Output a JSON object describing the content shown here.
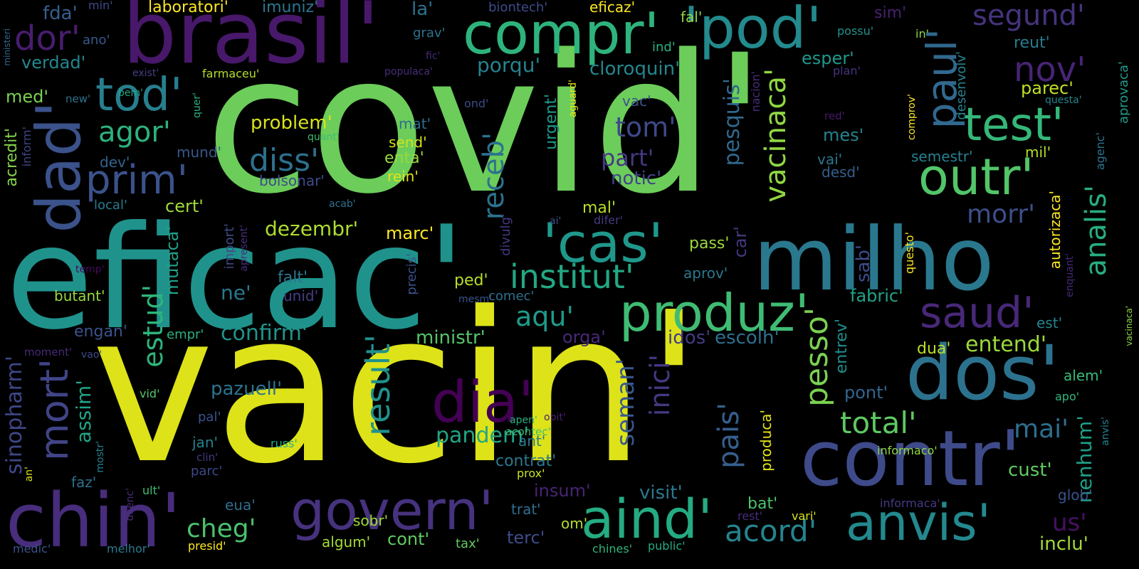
{
  "palette": {
    "background": "#000000"
  },
  "words": [
    {
      "text": "covid'",
      "color": "#6ccd5a"
    },
    {
      "text": "vacin'",
      "color": "#dde318"
    },
    {
      "text": "eficac'",
      "color": "#20928c"
    },
    {
      "text": "brasil'",
      "color": "#48186a"
    },
    {
      "text": "milho",
      "color": "#2a788e"
    },
    {
      "text": "contr'",
      "color": "#3e4a89"
    },
    {
      "text": "chin'",
      "color": "#472d7b"
    },
    {
      "text": "dos'",
      "color": "#2c728e"
    },
    {
      "text": "compr'",
      "color": "#2eb37c"
    },
    {
      "text": "'pod'",
      "color": "#238a8d"
    },
    {
      "text": "dad'",
      "color": "#3b528b"
    },
    {
      "text": "produz'",
      "color": "#3fbc73"
    },
    {
      "text": "govern'",
      "color": "#46327e"
    },
    {
      "text": "aind'",
      "color": "#25ab82"
    },
    {
      "text": "anvis'",
      "color": "#23898e"
    },
    {
      "text": "dia'",
      "color": "#440154"
    },
    {
      "text": "'cas'",
      "color": "#1f988b"
    },
    {
      "text": "outr'",
      "color": "#52c569"
    },
    {
      "text": "test'",
      "color": "#35b779"
    },
    {
      "text": "tod'",
      "color": "#277f8e"
    },
    {
      "text": "paul'",
      "color": "#31688e"
    },
    {
      "text": "saud'",
      "color": "#482878"
    },
    {
      "text": "institut'",
      "color": "#22a884"
    },
    {
      "text": "prim'",
      "color": "#3b528b"
    },
    {
      "text": "mort'",
      "color": "#414487"
    },
    {
      "text": "dor'",
      "color": "#481d6f"
    },
    {
      "text": "nov'",
      "color": "#482475"
    },
    {
      "text": "segund'",
      "color": "#46337e"
    },
    {
      "text": "agor'",
      "color": "#2db27d"
    },
    {
      "text": "diss'",
      "color": "#2d708e"
    },
    {
      "text": "result'",
      "color": "#21918c"
    },
    {
      "text": "estud'",
      "color": "#2fb47c"
    },
    {
      "text": "receb'",
      "color": "#2c728e"
    },
    {
      "text": "vacinaca'",
      "color": "#90d743"
    },
    {
      "text": "pesso'",
      "color": "#7ad151"
    },
    {
      "text": "total'",
      "color": "#5ec962"
    },
    {
      "text": "analis'",
      "color": "#27ad81"
    },
    {
      "text": "acord'",
      "color": "#25848e"
    },
    {
      "text": "pais'",
      "color": "#355f8d"
    },
    {
      "text": "inici'",
      "color": "#453882"
    },
    {
      "text": "seman'",
      "color": "#38588c"
    },
    {
      "text": "cheg'",
      "color": "#4ac16d"
    },
    {
      "text": "aqu'",
      "color": "#1e9b8a"
    },
    {
      "text": "tom'",
      "color": "#3e4989"
    },
    {
      "text": "morr'",
      "color": "#3d4e8a"
    },
    {
      "text": "pandem'",
      "color": "#21a585"
    },
    {
      "text": "mai'",
      "color": "#2e6e8e"
    },
    {
      "text": "entend'",
      "color": "#9bd93c"
    },
    {
      "text": "pesquis'",
      "color": "#30698e"
    },
    {
      "text": "confirm'",
      "color": "#1f958b"
    },
    {
      "text": "porqu'",
      "color": "#26828e"
    },
    {
      "text": "part'",
      "color": "#443983"
    },
    {
      "text": "cloroquin'",
      "color": "#24868e"
    },
    {
      "text": "dezembr'",
      "color": "#addc30"
    },
    {
      "text": "sinopharm'",
      "color": "#3f4788"
    },
    {
      "text": "assim'",
      "color": "#20a386"
    },
    {
      "text": "pazuell'",
      "color": "#2c738e"
    },
    {
      "text": "mutaca'",
      "color": "#1fa188"
    },
    {
      "text": "us'",
      "color": "#471063"
    },
    {
      "text": "nenhum'",
      "color": "#1fa088"
    },
    {
      "text": "inclu'",
      "color": "#a2da37"
    },
    {
      "text": "anvis'",
      "color": "#26818e"
    },
    {
      "text": "marc'",
      "color": "#fde725"
    },
    {
      "text": "problem'",
      "color": "#d8e219"
    },
    {
      "text": "ministr'",
      "color": "#54c568"
    },
    {
      "text": "pont'",
      "color": "#32658e"
    },
    {
      "text": "esper'",
      "color": "#1f988b"
    },
    {
      "text": "reut'",
      "color": "#287c8e"
    },
    {
      "text": "parec'",
      "color": "#c2df23"
    },
    {
      "text": "urgent'",
      "color": "#1f9a8a"
    },
    {
      "text": "vacinaca'",
      "color": "#90d743"
    },
    {
      "text": "sab'",
      "color": "#3e4c8a"
    },
    {
      "text": "mes'",
      "color": "#26828e"
    },
    {
      "text": "vai'",
      "color": "#2a778e"
    },
    {
      "text": "desd'",
      "color": "#355f8d"
    },
    {
      "text": "semestr'",
      "color": "#27808e"
    },
    {
      "text": "mil'",
      "color": "#b5de2b"
    },
    {
      "text": "notic'",
      "color": "#414487"
    },
    {
      "text": "mal'",
      "color": "#b8de29"
    },
    {
      "text": "pass'",
      "color": "#9bd93c"
    },
    {
      "text": "car'",
      "color": "#443983"
    },
    {
      "text": "aprov'",
      "color": "#2a778e"
    },
    {
      "text": "fabric'",
      "color": "#20a386"
    },
    {
      "text": "est'",
      "color": "#25848e"
    },
    {
      "text": "dua'",
      "color": "#bddf26"
    },
    {
      "text": "cust'",
      "color": "#5ec962"
    },
    {
      "text": "alem'",
      "color": "#3aba76"
    },
    {
      "text": "apo'",
      "color": "#31b57b"
    },
    {
      "text": "glob'",
      "color": "#3a538b"
    },
    {
      "text": "entrev'",
      "color": "#218e8d"
    },
    {
      "text": "escolh'",
      "color": "#2d708e"
    },
    {
      "text": "idos'",
      "color": "#443a83"
    },
    {
      "text": "orga'",
      "color": "#482878"
    },
    {
      "text": "visit'",
      "color": "#2a788e"
    },
    {
      "text": "bat'",
      "color": "#4ec36b"
    },
    {
      "text": "insum'",
      "color": "#482475"
    },
    {
      "text": "contrat'",
      "color": "#2a788e"
    },
    {
      "text": "prox'",
      "color": "#c8e020"
    },
    {
      "text": "trat'",
      "color": "#2e6f8e"
    },
    {
      "text": "om'",
      "color": "#b5de2b"
    },
    {
      "text": "terc'",
      "color": "#3e4c8a"
    },
    {
      "text": "cont'",
      "color": "#5ec962"
    },
    {
      "text": "tax'",
      "color": "#63cb5f"
    },
    {
      "text": "algum'",
      "color": "#a2da37"
    },
    {
      "text": "sobr'",
      "color": "#9fda3a"
    },
    {
      "text": "acontec'",
      "color": "#3fbc73"
    },
    {
      "text": "apen'",
      "color": "#2ab07f"
    },
    {
      "text": "ant'",
      "color": "#2a788e"
    },
    {
      "text": "obit'",
      "color": "#482173"
    },
    {
      "text": "vid'",
      "color": "#52c569"
    },
    {
      "text": "pal'",
      "color": "#3b528b"
    },
    {
      "text": "jan'",
      "color": "#26828e"
    },
    {
      "text": "clin'",
      "color": "#443a83"
    },
    {
      "text": "parc'",
      "color": "#3e4989"
    },
    {
      "text": "eua'",
      "color": "#2e6e8e"
    },
    {
      "text": "russ'",
      "color": "#29af7f"
    },
    {
      "text": "faz'",
      "color": "#2e6e8e"
    },
    {
      "text": "doenc'",
      "color": "#472c7a"
    },
    {
      "text": "ult'",
      "color": "#3fbc73"
    },
    {
      "text": "mostr'",
      "color": "#25848e"
    },
    {
      "text": "an'",
      "color": "#dde318"
    },
    {
      "text": "medic'",
      "color": "#3b528b"
    },
    {
      "text": "melhor'",
      "color": "#287c8e"
    },
    {
      "text": "presid'",
      "color": "#fde725"
    },
    {
      "text": "chines'",
      "color": "#31b57b"
    },
    {
      "text": "public'",
      "color": "#25ab82"
    },
    {
      "text": "vari'",
      "color": "#d8e219"
    },
    {
      "text": "rest'",
      "color": "#472d7b"
    },
    {
      "text": "informaca'",
      "color": "#443983"
    },
    {
      "text": "informaco'",
      "color": "#8ed645"
    },
    {
      "text": "produca'",
      "color": "#e5e419"
    },
    {
      "text": "questo'",
      "color": "#fde725"
    },
    {
      "text": "autorizaca'",
      "color": "#fde725"
    },
    {
      "text": "enquant'",
      "color": "#482878"
    },
    {
      "text": "agenc'",
      "color": "#2c728e"
    },
    {
      "text": "aprovaca'",
      "color": "#1f998a"
    },
    {
      "text": "questa'",
      "color": "#25848e"
    },
    {
      "text": "comprov'",
      "color": "#fde725"
    },
    {
      "text": "red'",
      "color": "#48186a"
    },
    {
      "text": "desenvolv'",
      "color": "#25848e"
    },
    {
      "text": "plan'",
      "color": "#46327e"
    },
    {
      "text": "in'",
      "color": "#8fd744"
    },
    {
      "text": "possu'",
      "color": "#21918c"
    },
    {
      "text": "sim'",
      "color": "#482173"
    },
    {
      "text": "fal'",
      "color": "#90d743"
    },
    {
      "text": "ind'",
      "color": "#2ab07f"
    },
    {
      "text": "vac'",
      "color": "#3b528b"
    },
    {
      "text": "aguard'",
      "color": "#e7e419"
    },
    {
      "text": "nacion'",
      "color": "#472d7b"
    },
    {
      "text": "ond'",
      "color": "#3e4989"
    },
    {
      "text": "eficaz'",
      "color": "#fde725"
    },
    {
      "text": "biontech'",
      "color": "#3e4c8a"
    },
    {
      "text": "la'",
      "color": "#2c718e"
    },
    {
      "text": "grav'",
      "color": "#2c728e"
    },
    {
      "text": "fic'",
      "color": "#482878"
    },
    {
      "text": "populaca'",
      "color": "#472d7b"
    },
    {
      "text": "mat'",
      "color": "#2e6e8e"
    },
    {
      "text": "send'",
      "color": "#d2e21b"
    },
    {
      "text": "enta'",
      "color": "#98d83e"
    },
    {
      "text": "rein'",
      "color": "#e2e418"
    },
    {
      "text": "bolsonar'",
      "color": "#3e4c8a"
    },
    {
      "text": "acab'",
      "color": "#2e6f8e"
    },
    {
      "text": "ai'",
      "color": "#3b528b"
    },
    {
      "text": "difer'",
      "color": "#443983"
    },
    {
      "text": "divulg'",
      "color": "#453882"
    },
    {
      "text": "precis'",
      "color": "#3b528b"
    },
    {
      "text": "mesm'",
      "color": "#3b528b"
    },
    {
      "text": "ped'",
      "color": "#b8de29"
    },
    {
      "text": "comec'",
      "color": "#2e6e8e"
    },
    {
      "text": "unid'",
      "color": "#433e85"
    },
    {
      "text": "falt'",
      "color": "#2a768e"
    },
    {
      "text": "ne'",
      "color": "#2a788e"
    },
    {
      "text": "empr'",
      "color": "#2ab07f"
    },
    {
      "text": "engan'",
      "color": "#3b528b"
    },
    {
      "text": "vao'",
      "color": "#3e4989"
    },
    {
      "text": "butant'",
      "color": "#98d83e"
    },
    {
      "text": "temp'",
      "color": "#46085c"
    },
    {
      "text": "import'",
      "color": "#3e4c8a"
    },
    {
      "text": "apresent'",
      "color": "#46307e"
    },
    {
      "text": "local'",
      "color": "#287c8e"
    },
    {
      "text": "cert'",
      "color": "#9fda3a"
    },
    {
      "text": "mund'",
      "color": "#38588c"
    },
    {
      "text": "dev'",
      "color": "#32648e"
    },
    {
      "text": "inform'",
      "color": "#3f4788"
    },
    {
      "text": "acredit'",
      "color": "#84d44b"
    },
    {
      "text": "quant'",
      "color": "#3fbc73"
    },
    {
      "text": "quer'",
      "color": "#2ab07f"
    },
    {
      "text": "new'",
      "color": "#2c738e"
    },
    {
      "text": "bem'",
      "color": "#21a585"
    },
    {
      "text": "exist'",
      "color": "#433e85"
    },
    {
      "text": "farmaceu'",
      "color": "#b5de2b"
    },
    {
      "text": "med'",
      "color": "#7ad151"
    },
    {
      "text": "verdad'",
      "color": "#24868e"
    },
    {
      "text": "ano'",
      "color": "#38598c"
    },
    {
      "text": "fda'",
      "color": "#355f8d"
    },
    {
      "text": "min'",
      "color": "#3e4989"
    },
    {
      "text": "laboratori'",
      "color": "#fde725"
    },
    {
      "text": "imuniz'",
      "color": "#2a778e"
    },
    {
      "text": "ministeri",
      "color": "#31688e"
    },
    {
      "text": "moment'",
      "color": "#482878"
    }
  ]
}
